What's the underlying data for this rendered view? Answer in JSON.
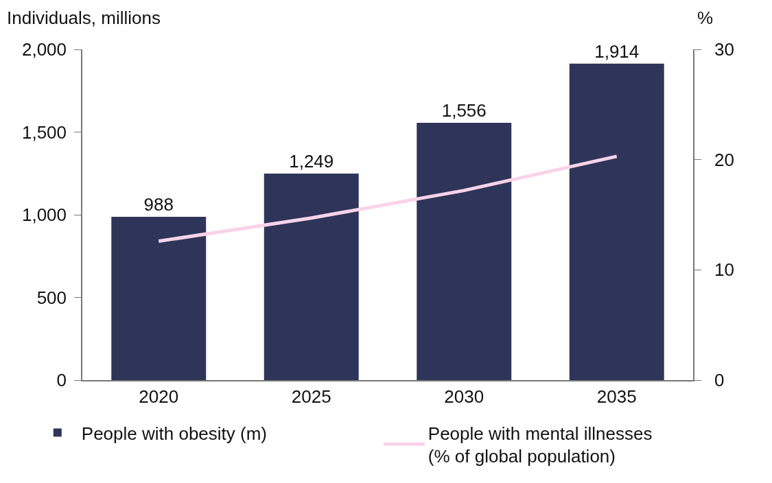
{
  "chart_data": {
    "type": "bar",
    "categories": [
      "2020",
      "2025",
      "2030",
      "2035"
    ],
    "ylabel": "Individuals, millions",
    "y2label": "%",
    "ylim": [
      0,
      2000
    ],
    "yticks": [
      {
        "value": 0,
        "label": "0"
      },
      {
        "value": 500,
        "label": "500"
      },
      {
        "value": 1000,
        "label": "1,000"
      },
      {
        "value": 1500,
        "label": "1,500"
      },
      {
        "value": 2000,
        "label": "2,000"
      }
    ],
    "y2lim": [
      0,
      30
    ],
    "y2ticks": [
      0,
      10,
      20,
      30
    ],
    "grid": false,
    "legend": "bottom",
    "series": [
      {
        "name": "People with obesity (m)",
        "color": "#2e3558",
        "values": [
          988,
          1249,
          1556,
          1914
        ],
        "value_labels": [
          "988",
          "1,249",
          "1,556",
          "1,914"
        ]
      },
      {
        "name": "People with mental illnesses\n(% of global population)",
        "type": "line",
        "axis": "y2",
        "color": "#f9d3ea",
        "values": [
          12.6,
          14.7,
          17.2,
          20.3
        ],
        "marker": "none",
        "line_style": "solid"
      }
    ]
  }
}
